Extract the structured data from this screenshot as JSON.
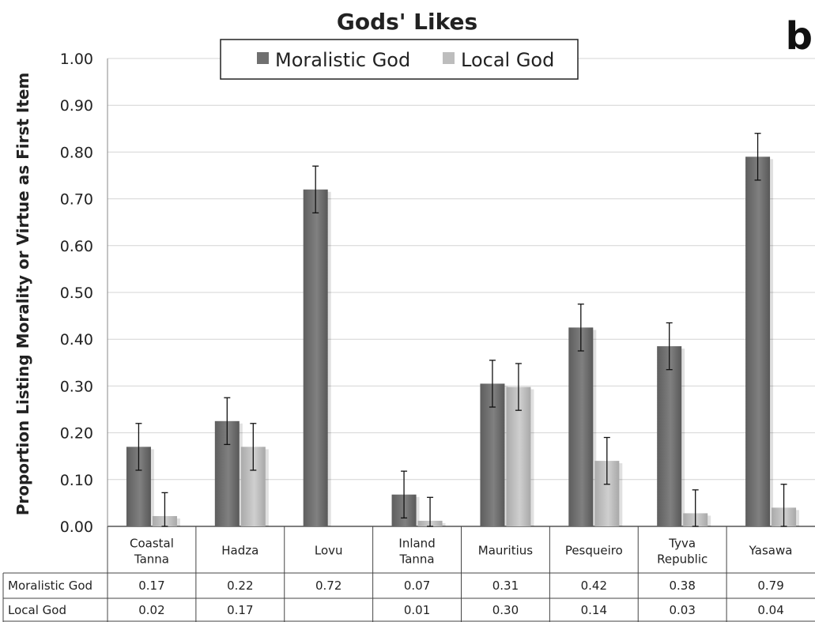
{
  "chart_data": {
    "type": "bar",
    "title": "Gods' Likes",
    "panel_label": "b",
    "ylabel": "Proportion Listing Morality or Virtue as First Item",
    "xlabel": "",
    "ylim": [
      0,
      1.0
    ],
    "y_ticks": [
      "0.00",
      "0.10",
      "0.20",
      "0.30",
      "0.40",
      "0.50",
      "0.60",
      "0.70",
      "0.80",
      "0.90",
      "1.00"
    ],
    "grid": true,
    "legend_position": "top-center",
    "categories": [
      [
        "Coastal",
        "Tanna"
      ],
      [
        "Hadza"
      ],
      [
        "Lovu"
      ],
      [
        "Inland",
        "Tanna"
      ],
      [
        "Mauritius"
      ],
      [
        "Pesqueiro"
      ],
      [
        "Tyva",
        "Republic"
      ],
      [
        "Yasawa"
      ]
    ],
    "series": [
      {
        "name": "Moralistic God",
        "color": "#707070",
        "values": [
          0.17,
          0.225,
          0.72,
          0.068,
          0.305,
          0.425,
          0.385,
          0.79
        ],
        "error": [
          0.05,
          0.05,
          0.05,
          0.05,
          0.05,
          0.05,
          0.05,
          0.05
        ],
        "table_values": [
          "0.17",
          "0.22",
          "0.72",
          "0.07",
          "0.31",
          "0.42",
          "0.38",
          "0.79"
        ]
      },
      {
        "name": "Local God",
        "color": "#bdbdbd",
        "values": [
          0.022,
          0.17,
          null,
          0.012,
          0.298,
          0.14,
          0.028,
          0.04
        ],
        "error": [
          0.05,
          0.05,
          null,
          0.05,
          0.05,
          0.05,
          0.05,
          0.05
        ],
        "table_values": [
          "0.02",
          "0.17",
          "",
          "0.01",
          "0.30",
          "0.14",
          "0.03",
          "0.04"
        ]
      }
    ]
  }
}
